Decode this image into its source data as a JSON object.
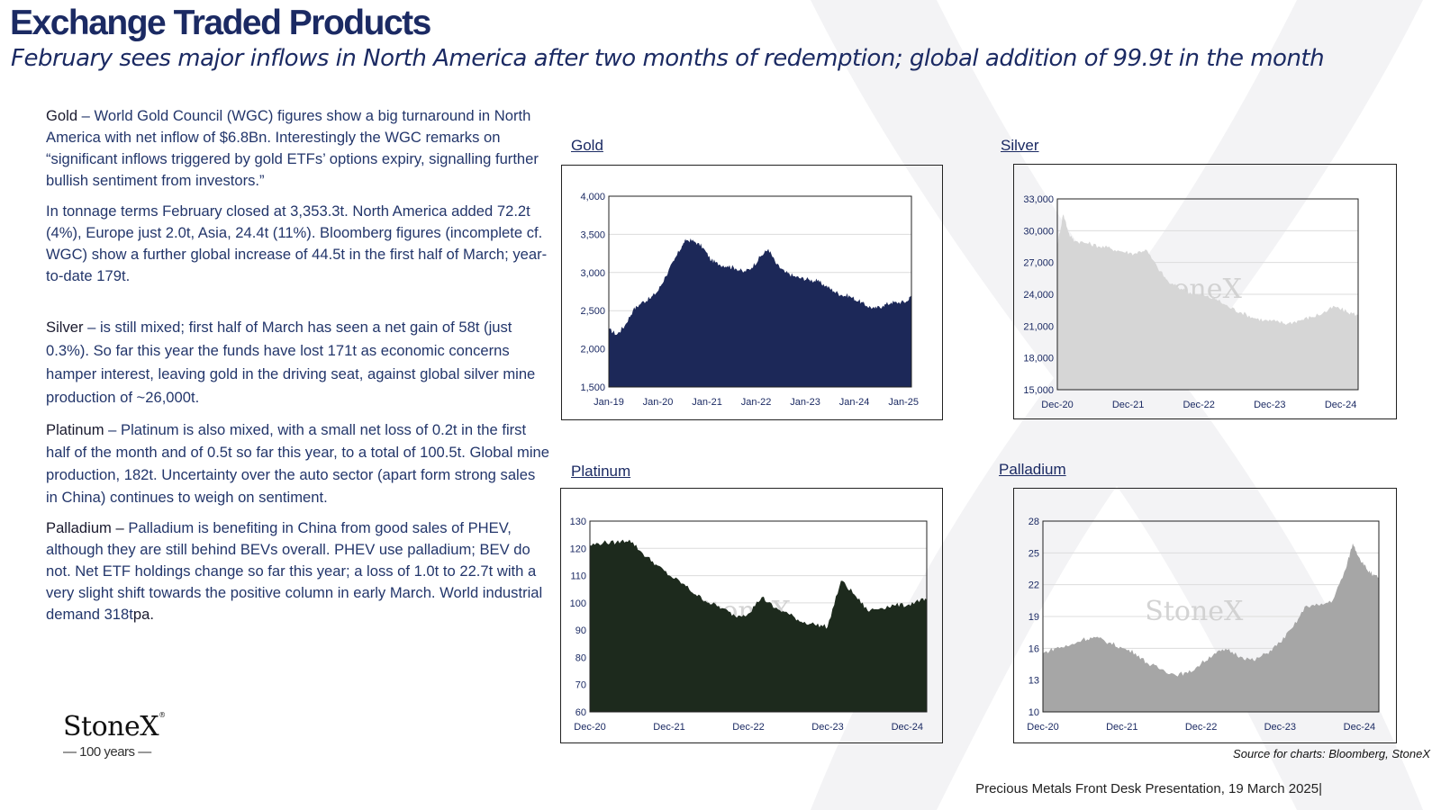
{
  "header": {
    "title": "Exchange Traded Products",
    "subtitle": "February sees major inflows in North America after two months of redemption; global addition of 99.9t in the month"
  },
  "commentary": {
    "gold": {
      "label": "Gold",
      "sep": " –  ",
      "p1": "World Gold Council (WGC) figures show a big turnaround in North America with net inflow of $6.8Bn.  Interestingly the WGC remarks on “significant inflows triggered by gold ETFs’ options expiry, signalling further bullish sentiment from investors.”",
      "p2": "In tonnage terms February closed at 3,353.3t.  North America added 72.2t (4%), Europe just 2.0t, Asia, 24.4t (11%).  Bloomberg figures (incomplete cf. WGC) show a further global increase of 44.5t in the first half of March; year-to-date 179t."
    },
    "silver": {
      "label": "Silver",
      "sep": " –  ",
      "text": "is still mixed; first half of March has seen a net gain of 58t (just 0.3%).  So far this year the funds have lost 171t as economic concerns hamper interest, leaving gold in the driving seat, against global silver mine production of ~26,000t."
    },
    "platinum": {
      "label": "Platinum",
      "sep": " – ",
      "text": "Platinum is also mixed, with a small net loss of 0.2t in the first half of the month and of 0.5t so far this year, to a total of 100.5t.  Global mine production, 182t.  Uncertainty over the auto sector (apart form strong sales in China) continues to weigh on sentiment."
    },
    "palladium": {
      "label": "Palladium –",
      "text": " Palladium is benefiting in China from good sales of PHEV, although they are still behind BEVs overall.  PHEV use palladium; BEV do not. Net ETF holdings change so far this year; a loss of 1.0t to 22.7t with a very slight shift towards the positive column in early March.  World industrial demand 318t",
      "tail": "pa."
    }
  },
  "logo": {
    "name": "StoneX",
    "reg": "®",
    "years": "— 100 years —"
  },
  "footer": {
    "source": "Source for charts: Bloomberg, StoneX",
    "presentation": "Precious Metals Front Desk Presentation, 19 March 2025|"
  },
  "colors": {
    "navy": "#1b2a63",
    "gold_fill": "#1c2858",
    "silver_fill": "#d6d6d6",
    "platinum_fill": "#1d2a1d",
    "palladium_fill": "#a6a6a6"
  },
  "chart_data": [
    {
      "type": "area",
      "title": "Gold",
      "fill_color": "#1c2858",
      "watermark": "",
      "grid": true,
      "x_start": "2019-01-01",
      "x_end": "2025-03-01",
      "xticks": [
        "Jan-19",
        "Jan-20",
        "Jan-21",
        "Jan-22",
        "Jan-23",
        "Jan-24",
        "Jan-25"
      ],
      "yticks": [
        1500,
        2000,
        2500,
        3000,
        3500,
        4000
      ],
      "ytick_labels": [
        "1,500",
        "2,000",
        "2,500",
        "3,000",
        "3,500",
        "4,000"
      ],
      "ylim": [
        1500,
        4000
      ],
      "x": [
        "2019-01",
        "2019-03",
        "2019-05",
        "2019-07",
        "2019-09",
        "2019-11",
        "2020-01",
        "2020-03",
        "2020-05",
        "2020-07",
        "2020-08",
        "2020-10",
        "2020-12",
        "2021-02",
        "2021-04",
        "2021-06",
        "2021-08",
        "2021-10",
        "2021-12",
        "2022-02",
        "2022-04",
        "2022-06",
        "2022-08",
        "2022-10",
        "2022-12",
        "2023-02",
        "2023-04",
        "2023-06",
        "2023-08",
        "2023-10",
        "2023-12",
        "2024-02",
        "2024-04",
        "2024-06",
        "2024-08",
        "2024-10",
        "2024-12",
        "2025-02",
        "2025-03"
      ],
      "values": [
        2250,
        2180,
        2300,
        2500,
        2600,
        2650,
        2750,
        2950,
        3150,
        3350,
        3420,
        3400,
        3320,
        3150,
        3100,
        3080,
        3050,
        3000,
        3060,
        3200,
        3300,
        3100,
        3000,
        2950,
        2920,
        2900,
        2880,
        2820,
        2750,
        2700,
        2680,
        2620,
        2560,
        2520,
        2560,
        2600,
        2600,
        2620,
        2700
      ]
    },
    {
      "type": "area",
      "title": "Silver",
      "fill_color": "#d6d6d6",
      "watermark": "StoneX",
      "grid": true,
      "x_start": "2020-12-01",
      "x_end": "2025-03-01",
      "xticks": [
        "Dec-20",
        "Dec-21",
        "Dec-22",
        "Dec-23",
        "Dec-24"
      ],
      "yticks": [
        15000,
        18000,
        21000,
        24000,
        27000,
        30000,
        33000
      ],
      "ytick_labels": [
        "15,000",
        "18,000",
        "21,000",
        "24,000",
        "27,000",
        "30,000",
        "33,000"
      ],
      "ylim": [
        15000,
        33000
      ],
      "x": [
        "2020-12",
        "2021-01",
        "2021-02",
        "2021-03",
        "2021-05",
        "2021-07",
        "2021-09",
        "2021-11",
        "2022-01",
        "2022-03",
        "2022-05",
        "2022-07",
        "2022-09",
        "2022-11",
        "2023-01",
        "2023-03",
        "2023-05",
        "2023-07",
        "2023-09",
        "2023-11",
        "2024-01",
        "2024-03",
        "2024-05",
        "2024-07",
        "2024-09",
        "2024-11",
        "2025-01",
        "2025-03"
      ],
      "values": [
        28500,
        31500,
        29500,
        29000,
        28800,
        28500,
        28300,
        28000,
        27800,
        28200,
        26500,
        25000,
        24500,
        24000,
        23800,
        23500,
        22800,
        22300,
        21800,
        21500,
        21400,
        21200,
        21500,
        21800,
        22200,
        22800,
        22300,
        22000
      ]
    },
    {
      "type": "area",
      "title": "Platinum",
      "fill_color": "#1d2a1d",
      "watermark": "StoneX",
      "grid": true,
      "x_start": "2020-12-01",
      "x_end": "2025-03-01",
      "xticks": [
        "Dec-20",
        "Dec-21",
        "Dec-22",
        "Dec-23",
        "Dec-24"
      ],
      "yticks": [
        60,
        70,
        80,
        90,
        100,
        110,
        120,
        130
      ],
      "ytick_labels": [
        "60",
        "70",
        "80",
        "90",
        "100",
        "110",
        "120",
        "130"
      ],
      "ylim": [
        60,
        130
      ],
      "x": [
        "2020-12",
        "2021-02",
        "2021-04",
        "2021-06",
        "2021-08",
        "2021-10",
        "2021-12",
        "2022-02",
        "2022-04",
        "2022-06",
        "2022-08",
        "2022-10",
        "2022-12",
        "2023-02",
        "2023-04",
        "2023-06",
        "2023-08",
        "2023-10",
        "2023-12",
        "2024-02",
        "2024-04",
        "2024-06",
        "2024-08",
        "2024-10",
        "2024-12",
        "2025-02",
        "2025-03"
      ],
      "values": [
        121,
        122,
        122,
        123,
        118,
        114,
        110,
        107,
        103,
        100,
        98,
        95,
        96,
        102,
        98,
        96,
        93,
        92,
        91,
        108,
        103,
        97,
        98,
        99,
        99,
        101,
        100.5
      ]
    },
    {
      "type": "area",
      "title": "Palladium",
      "fill_color": "#a6a6a6",
      "watermark": "StoneX",
      "grid": true,
      "x_start": "2020-12-01",
      "x_end": "2025-03-01",
      "xticks": [
        "Dec-20",
        "Dec-21",
        "Dec-22",
        "Dec-23",
        "Dec-24"
      ],
      "yticks": [
        10,
        13,
        16,
        19,
        22,
        25,
        28
      ],
      "ytick_labels": [
        "10",
        "13",
        "16",
        "19",
        "22",
        "25",
        "28"
      ],
      "ylim": [
        10,
        28
      ],
      "x": [
        "2020-12",
        "2021-02",
        "2021-04",
        "2021-06",
        "2021-08",
        "2021-10",
        "2021-12",
        "2022-02",
        "2022-04",
        "2022-06",
        "2022-08",
        "2022-10",
        "2022-12",
        "2023-02",
        "2023-04",
        "2023-06",
        "2023-08",
        "2023-10",
        "2023-12",
        "2024-02",
        "2024-04",
        "2024-06",
        "2024-08",
        "2024-10",
        "2024-11",
        "2024-12",
        "2025-01",
        "2025-02",
        "2025-03"
      ],
      "values": [
        15.5,
        16.0,
        16.2,
        16.8,
        17.0,
        16.5,
        16.0,
        15.5,
        14.5,
        14.0,
        13.5,
        13.6,
        14.5,
        15.5,
        15.8,
        15.2,
        14.8,
        15.5,
        16.5,
        18.0,
        20.0,
        20.0,
        20.5,
        23.5,
        25.8,
        24.5,
        23.5,
        22.8,
        22.7
      ]
    }
  ]
}
